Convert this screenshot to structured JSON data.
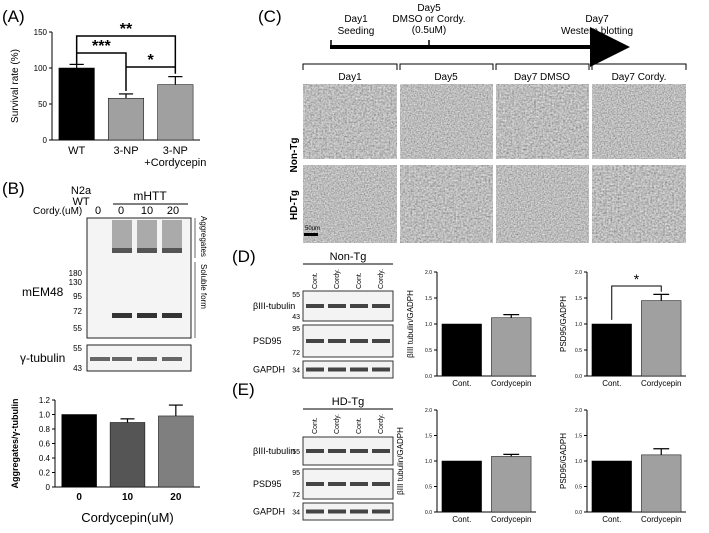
{
  "panel_labels": {
    "A": "(A)",
    "B": "(B)",
    "C": "(C)",
    "D": "(D)",
    "E": "(E)"
  },
  "panel_a": {
    "chart_data": {
      "type": "bar",
      "ylabel": "Survival rate (%)",
      "ylim": [
        0,
        150
      ],
      "yticks": [
        "0",
        "50",
        "100",
        "150"
      ],
      "categories": [
        "WT",
        "3-NP",
        "3-NP\n+Cordycepin"
      ],
      "category_lines": [
        [
          "WT"
        ],
        [
          "3-NP"
        ],
        [
          "3-NP",
          "+Cordycepin"
        ]
      ],
      "values": [
        100,
        58,
        77
      ],
      "errors": [
        5,
        6,
        11
      ],
      "colors": [
        "#000000",
        "#a0a0a0",
        "#a0a0a0"
      ],
      "significance": [
        {
          "pair": [
            "WT",
            "3-NP+Cordycepin"
          ],
          "label": "**"
        },
        {
          "pair": [
            "WT",
            "3-NP"
          ],
          "label": "***"
        },
        {
          "pair": [
            "3-NP",
            "3-NP+Cordycepin"
          ],
          "label": "*"
        }
      ]
    }
  },
  "panel_b": {
    "header_n2a": "N2a",
    "header_wt": "WT",
    "header_mhtt": "mHTT",
    "cordy_label": "Cordy.(uM)",
    "lane_labels": [
      "0",
      "0",
      "10",
      "20"
    ],
    "aggregates_label": "Aggregates",
    "soluble_label": "Soluble form",
    "antibody_main": "mEM48",
    "antibody_loading": "γ-tubulin",
    "markers_main": [
      "180",
      "130",
      "95",
      "72",
      "55"
    ],
    "markers_loading": [
      "55",
      "43"
    ],
    "chart_data": {
      "type": "bar",
      "categories": [
        "0",
        "10",
        "20"
      ],
      "values": [
        1.0,
        0.89,
        0.98
      ],
      "errors": [
        0,
        0.05,
        0.15
      ],
      "colors": [
        "#000000",
        "#555555",
        "#7f7f7f"
      ],
      "ylabel": "Aggregates/γ-tubulin",
      "xlabel": "Cordycepin(uM)",
      "ylim": [
        0,
        1.2
      ],
      "yticks": [
        "0",
        "0.2",
        "0.4",
        "0.6",
        "0.8",
        "1.0",
        "1.2"
      ]
    }
  },
  "panel_c": {
    "timeline": {
      "day1": "Day1",
      "day1_sub": "Seeding",
      "day5": "Day5",
      "day5_sub": "DMSO or Cordy.",
      "day5_sub2": "(0.5uM)",
      "day7": "Day7",
      "day7_sub": "Western blotting"
    },
    "column_headers": [
      "Day1",
      "Day5",
      "Day7 DMSO",
      "Day7 Cordy."
    ],
    "row_labels": [
      "Non-Tg",
      "HD-Tg"
    ],
    "scale_bar": "50um"
  },
  "panel_d": {
    "group": "Non-Tg",
    "lanes": [
      "Cont.",
      "Cordy.",
      "Cont.",
      "Cordy."
    ],
    "blots": [
      {
        "name": "βIII-tubulin",
        "markers": [
          "55",
          "43"
        ]
      },
      {
        "name": "PSD95",
        "markers": [
          "95",
          "72"
        ]
      },
      {
        "name": "GAPDH",
        "markers": [
          "34"
        ]
      }
    ],
    "chart_data": [
      {
        "type": "bar",
        "categories": [
          "Cont.",
          "Cordycepin"
        ],
        "values": [
          1.0,
          1.12
        ],
        "errors": [
          0,
          0.06
        ],
        "ylabel": "βIII tubulin/GADPH",
        "ylim": [
          0,
          2.0
        ],
        "yticks": [
          "0.0",
          "0.5",
          "1.0",
          "1.5",
          "2.0"
        ],
        "colors": [
          "#000000",
          "#a0a0a0"
        ]
      },
      {
        "type": "bar",
        "categories": [
          "Cont.",
          "Cordycepin"
        ],
        "values": [
          1.0,
          1.45
        ],
        "errors": [
          0,
          0.12
        ],
        "ylabel": "PSD95/GADPH",
        "ylim": [
          0,
          2.0
        ],
        "yticks": [
          "0.0",
          "0.5",
          "1.0",
          "1.5",
          "2.0"
        ],
        "colors": [
          "#000000",
          "#a0a0a0"
        ],
        "significance": "*"
      }
    ]
  },
  "panel_e": {
    "group": "HD-Tg",
    "lanes": [
      "Cont.",
      "Cordy.",
      "Cont.",
      "Cordy."
    ],
    "blots": [
      {
        "name": "βIII-tubulin",
        "markers": [
          "55"
        ]
      },
      {
        "name": "PSD95",
        "markers": [
          "95",
          "72"
        ]
      },
      {
        "name": "GAPDH",
        "markers": [
          "34"
        ]
      }
    ],
    "chart_data": [
      {
        "type": "bar",
        "categories": [
          "Cont.",
          "Cordycepin"
        ],
        "values": [
          1.0,
          1.09
        ],
        "errors": [
          0,
          0.04
        ],
        "ylabel": "βIII tubulin/GADPH",
        "ylim": [
          0,
          2.0
        ],
        "yticks": [
          "0.0",
          "0.5",
          "1.0",
          "1.5",
          "2.0"
        ],
        "colors": [
          "#000000",
          "#a0a0a0"
        ]
      },
      {
        "type": "bar",
        "categories": [
          "Cont.",
          "Cordycepin"
        ],
        "values": [
          1.0,
          1.12
        ],
        "errors": [
          0,
          0.12
        ],
        "ylabel": "PSD95/GADPH",
        "ylim": [
          0,
          2.0
        ],
        "yticks": [
          "0.0",
          "0.5",
          "1.0",
          "1.5",
          "2.0"
        ],
        "colors": [
          "#000000",
          "#a0a0a0"
        ]
      }
    ]
  }
}
